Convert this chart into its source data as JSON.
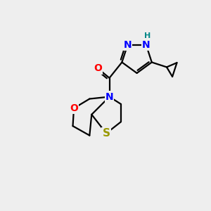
{
  "background_color": "#eeeeee",
  "atom_colors": {
    "N": "#0000ff",
    "O": "#ff0000",
    "S": "#999900",
    "C": "#000000",
    "H": "#008888"
  },
  "bond_color": "#000000",
  "bond_width": 1.6,
  "font_size_atoms": 10,
  "font_size_h": 8,
  "figsize": [
    3.0,
    3.0
  ],
  "dpi": 100
}
